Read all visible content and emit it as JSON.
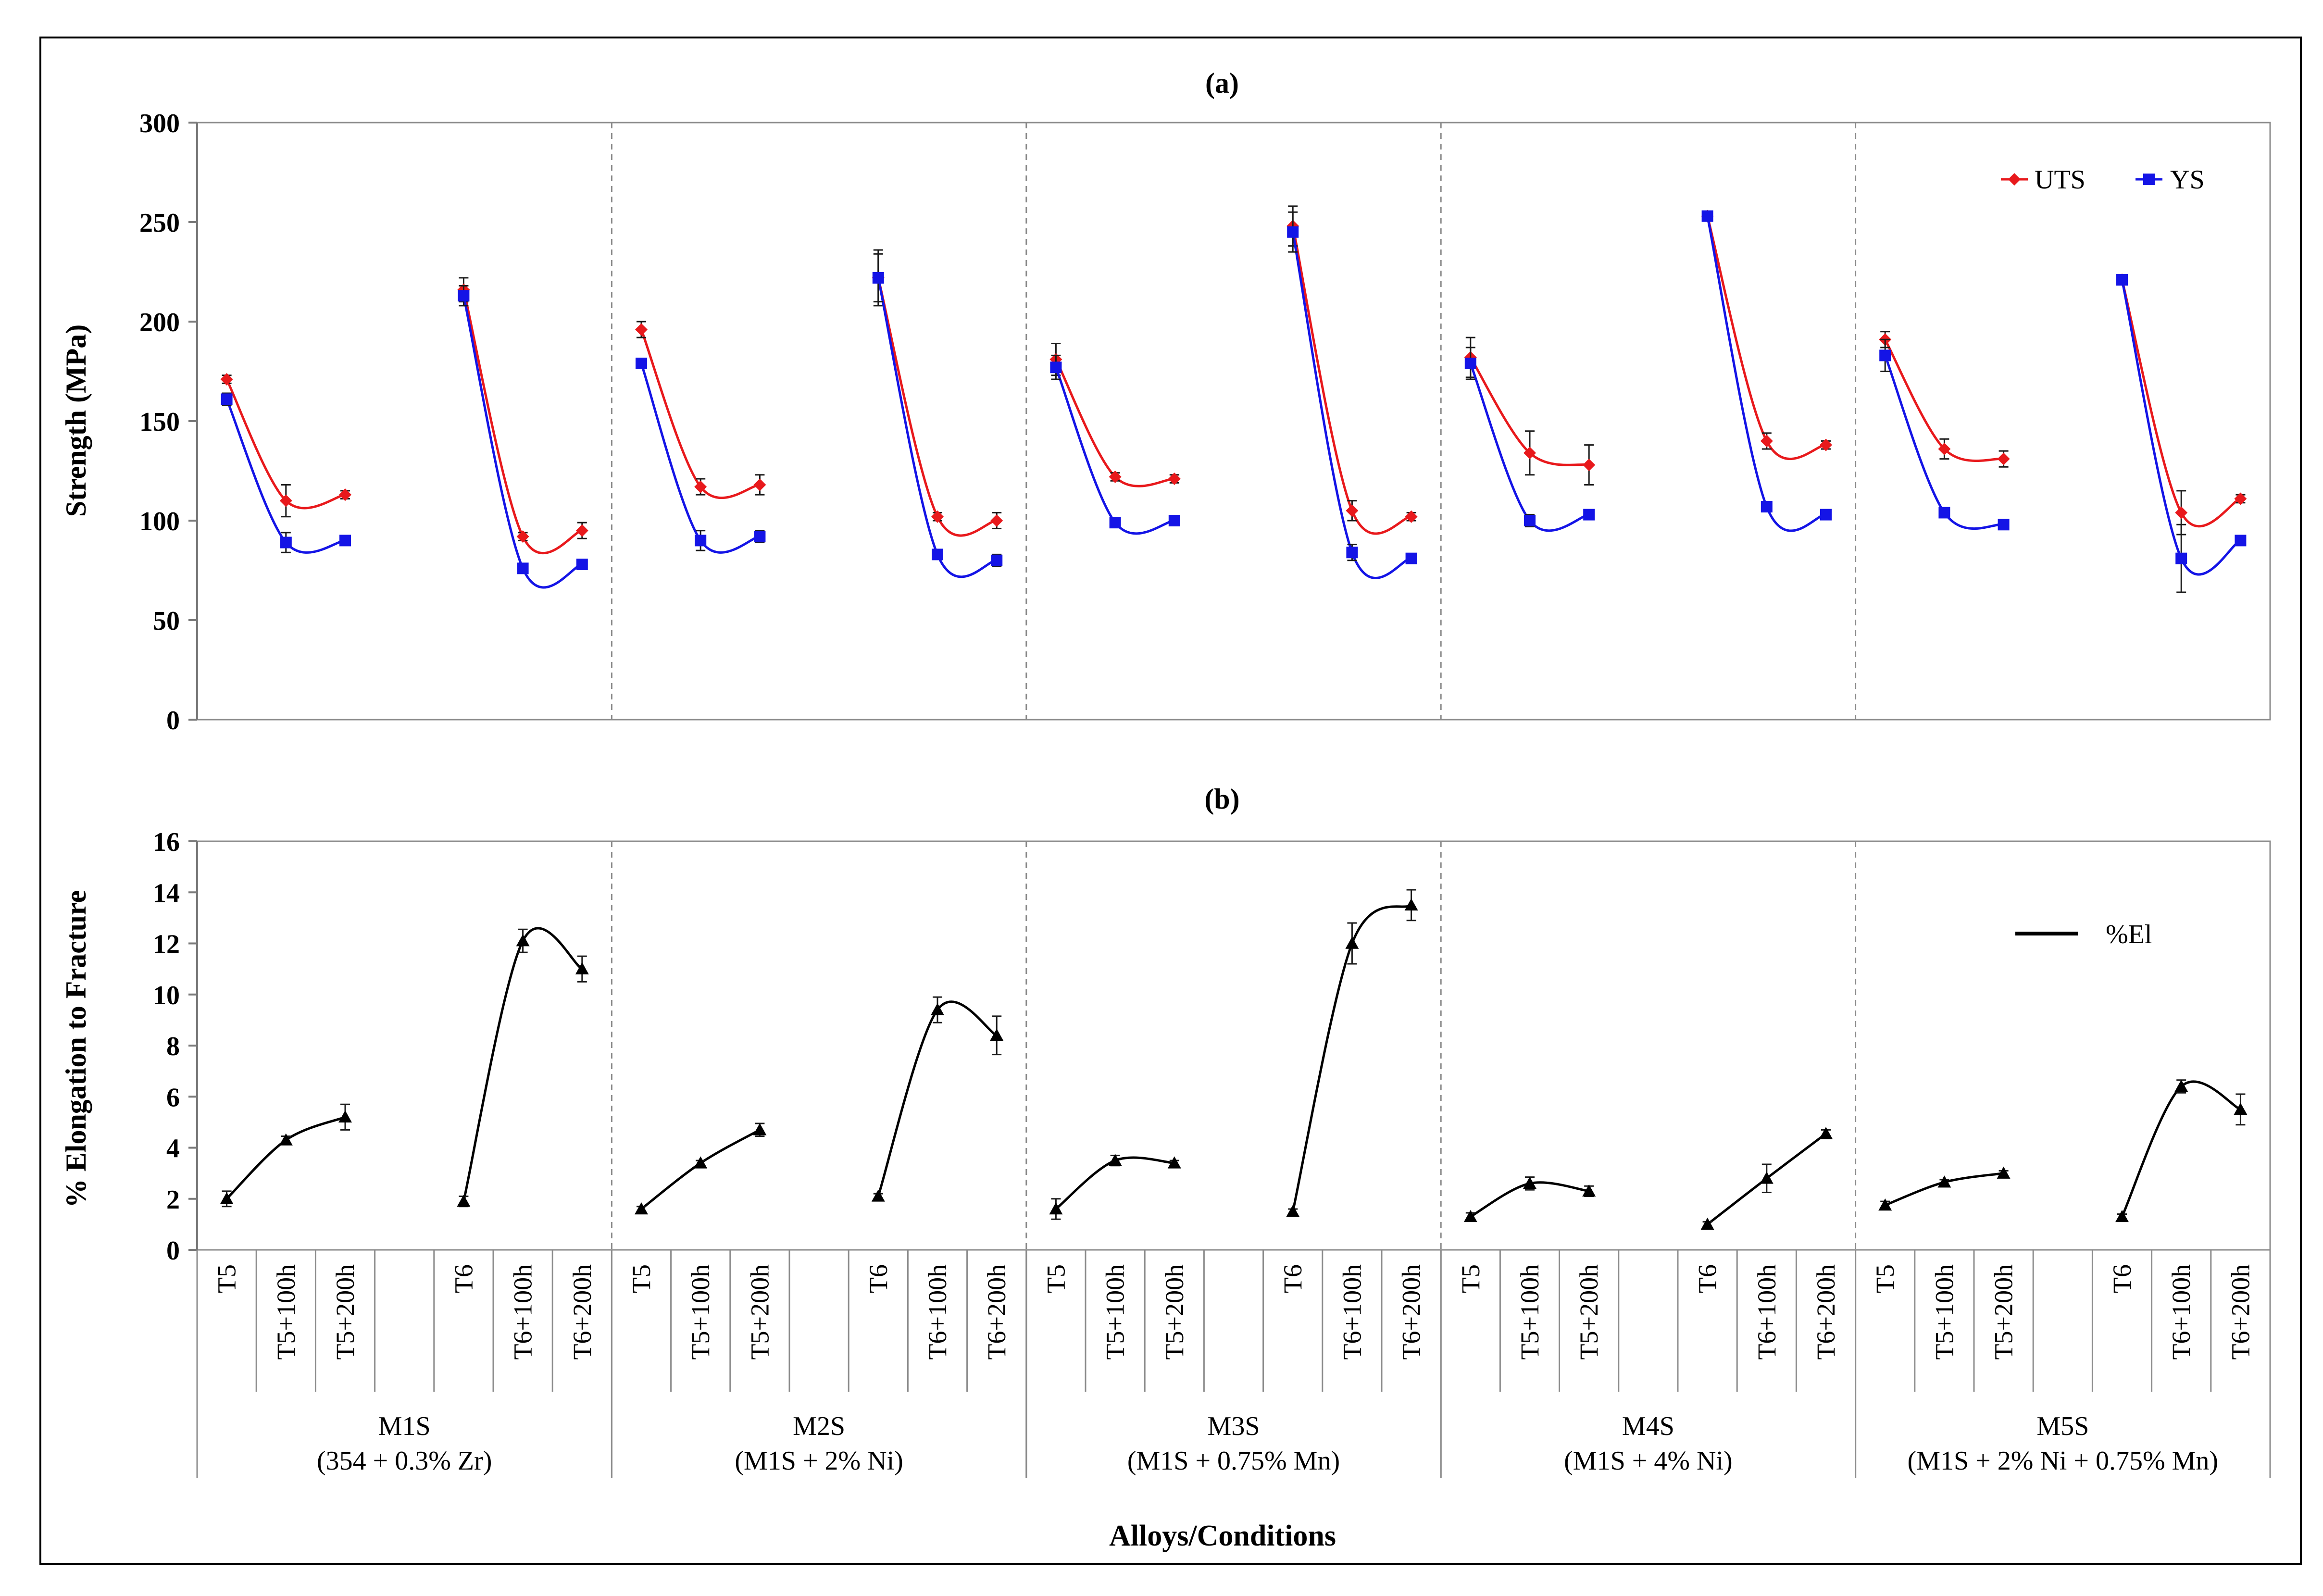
{
  "chart_data": [
    {
      "id": "a",
      "type": "line",
      "title": "(a)",
      "ylabel": "Strength (MPa)",
      "ylim": [
        0,
        300
      ],
      "yticks": [
        0,
        50,
        100,
        150,
        200,
        250,
        300
      ],
      "grid": false,
      "legend_position": "top-right",
      "series": [
        {
          "name": "UTS",
          "color": "#e8191c",
          "marker": "diamond",
          "values": [
            [
              171,
              110,
              113
            ],
            [
              216,
              92,
              95
            ],
            [
              196,
              117,
              118
            ],
            [
              222,
              102,
              100
            ],
            [
              181,
              122,
              121
            ],
            [
              248,
              105,
              102
            ],
            [
              182,
              134,
              128
            ],
            [
              253,
              140,
              138
            ],
            [
              191,
              136,
              131
            ],
            [
              221,
              104,
              111
            ]
          ],
          "errors": [
            [
              2,
              8,
              2
            ],
            [
              6,
              2,
              4
            ],
            [
              4,
              4,
              5
            ],
            [
              14,
              2,
              4
            ],
            [
              8,
              2,
              2
            ],
            [
              10,
              5,
              2
            ],
            [
              10,
              11,
              10
            ],
            [
              2,
              4,
              2
            ],
            [
              4,
              5,
              4
            ],
            [
              2,
              11,
              2
            ]
          ]
        },
        {
          "name": "YS",
          "color": "#1414e6",
          "marker": "square",
          "values": [
            [
              161,
              89,
              90
            ],
            [
              213,
              76,
              78
            ],
            [
              179,
              90,
              92
            ],
            [
              222,
              83,
              80
            ],
            [
              177,
              99,
              100
            ],
            [
              245,
              84,
              81
            ],
            [
              179,
              100,
              103
            ],
            [
              253,
              107,
              103
            ],
            [
              183,
              104,
              98
            ],
            [
              221,
              81,
              90
            ]
          ],
          "errors": [
            [
              3,
              5,
              2
            ],
            [
              5,
              2,
              2
            ],
            [
              2,
              5,
              3
            ],
            [
              12,
              2,
              3
            ],
            [
              6,
              2,
              2
            ],
            [
              10,
              4,
              2
            ],
            [
              8,
              3,
              2
            ],
            [
              2,
              2,
              2
            ],
            [
              8,
              2,
              2
            ],
            [
              2,
              17,
              2
            ]
          ]
        }
      ]
    },
    {
      "id": "b",
      "type": "line",
      "title": "(b)",
      "ylabel": "% Elongation to Fracture",
      "ylim": [
        0,
        16
      ],
      "yticks": [
        0,
        2,
        4,
        6,
        8,
        10,
        12,
        14,
        16
      ],
      "grid": false,
      "legend_position": "top-right",
      "series": [
        {
          "name": "%El",
          "color": "#000000",
          "marker": "triangle",
          "values": [
            [
              2.0,
              4.3,
              5.2
            ],
            [
              1.9,
              12.1,
              11.0
            ],
            [
              1.6,
              3.4,
              4.7
            ],
            [
              2.1,
              9.4,
              8.4
            ],
            [
              1.6,
              3.5,
              3.4
            ],
            [
              1.5,
              12.0,
              13.5
            ],
            [
              1.3,
              2.6,
              2.3
            ],
            [
              1.0,
              2.8,
              4.55
            ],
            [
              1.75,
              2.65,
              3.0
            ],
            [
              1.3,
              6.4,
              5.5
            ]
          ],
          "errors": [
            [
              0.3,
              0.15,
              0.5
            ],
            [
              0.2,
              0.45,
              0.5
            ],
            [
              0.1,
              0.1,
              0.25
            ],
            [
              0.1,
              0.5,
              0.75
            ],
            [
              0.4,
              0.2,
              0.1
            ],
            [
              0.1,
              0.8,
              0.6
            ],
            [
              0.15,
              0.25,
              0.2
            ],
            [
              0.1,
              0.55,
              0.15
            ],
            [
              0.15,
              0.1,
              0.1
            ],
            [
              0.1,
              0.25,
              0.6
            ]
          ]
        }
      ]
    }
  ],
  "x_axis": {
    "title": "Alloys/Conditions",
    "conditions": [
      [
        "T5",
        "T5+100h",
        "T5+200h"
      ],
      [
        "T6",
        "T6+100h",
        "T6+200h"
      ]
    ],
    "alloys": [
      {
        "name": "M1S",
        "composition": "(354 + 0.3% Zr)"
      },
      {
        "name": "M2S",
        "composition": "(M1S + 2% Ni)"
      },
      {
        "name": "M3S",
        "composition": "(M1S + 0.75% Mn)"
      },
      {
        "name": "M4S",
        "composition": "(M1S + 4% Ni)"
      },
      {
        "name": "M5S",
        "composition": "(M1S + 2% Ni + 0.75% Mn)"
      }
    ]
  }
}
